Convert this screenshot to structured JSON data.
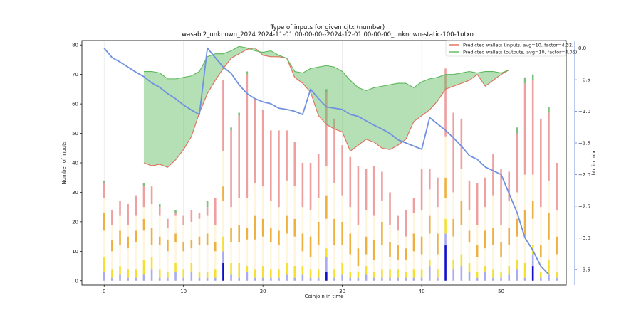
{
  "chart_data": {
    "type": "bar",
    "title": "Type of inputs for given cjtx (number)",
    "subtitle": "wasabi2_unknown_2024 2024-11-01 00-00-00--2024-12-01 00-00-00_unknown-static-100-1utxo",
    "xlabel": "Coinjoin in time",
    "ylabel": "Number of inputs",
    "y2label": "btc in mix",
    "xlim": [
      -2.8,
      58.2
    ],
    "ylim": [
      -1.5,
      81.5
    ],
    "y2lim": [
      -3.75,
      0.12
    ],
    "x_ticks": [
      0,
      10,
      20,
      30,
      40,
      50
    ],
    "y_ticks": [
      0,
      10,
      20,
      30,
      40,
      50,
      60,
      70,
      80
    ],
    "y2_ticks": [
      0.0,
      -0.5,
      -1.0,
      -1.5,
      -2.0,
      -2.5,
      -3.0,
      -3.5
    ],
    "x_tick_labels": [
      "0",
      "10",
      "20",
      "30",
      "40",
      "50"
    ],
    "y_tick_labels": [
      "0",
      "10",
      "20",
      "30",
      "40",
      "50",
      "60",
      "70",
      "80"
    ],
    "y2_tick_labels": [
      "0.0",
      "−0.5",
      "−1.0",
      "−1.5",
      "−2.0",
      "−2.5",
      "−3.0",
      "−3.5"
    ],
    "grid": "vertical",
    "legend_position": "top-right",
    "stack_colors": [
      "#1010cc",
      "#aaaaee",
      "#f5e030",
      "#fff5dd",
      "#f0b040",
      "#fff5dd",
      "#eea0a0",
      "#7ec07e"
    ],
    "stacks": [
      [
        0,
        3,
        5,
        9,
        6,
        5,
        5,
        1
      ],
      [
        0,
        1,
        3,
        6,
        4,
        5,
        5,
        0
      ],
      [
        0,
        2,
        3,
        7,
        5,
        5,
        5,
        0
      ],
      [
        0,
        1,
        3,
        7,
        4,
        4,
        7,
        0
      ],
      [
        0,
        1,
        3,
        9,
        4,
        5,
        7,
        0
      ],
      [
        0,
        2,
        5,
        10,
        4,
        4,
        7,
        1
      ],
      [
        0,
        4,
        4,
        4,
        6,
        8,
        6,
        0
      ],
      [
        0,
        1,
        3,
        8,
        3,
        7,
        3,
        1
      ],
      [
        0,
        1,
        2,
        7,
        4,
        4,
        3,
        0
      ],
      [
        0,
        3,
        3,
        7,
        3,
        6,
        1,
        1
      ],
      [
        0,
        1,
        3,
        6,
        3,
        6,
        3,
        0
      ],
      [
        0,
        3,
        3,
        5,
        3,
        6,
        4,
        0
      ],
      [
        0,
        1,
        2,
        9,
        3,
        6,
        2,
        0
      ],
      [
        0,
        1,
        2,
        9,
        4,
        6,
        3,
        2
      ],
      [
        0,
        1,
        3,
        6,
        3,
        6,
        9,
        0
      ],
      [
        6,
        4,
        5,
        12,
        5,
        12,
        24,
        0
      ],
      [
        0,
        2,
        4,
        7,
        5,
        7,
        26,
        1
      ],
      [
        0,
        1,
        5,
        7,
        6,
        9,
        28,
        1
      ],
      [
        0,
        3,
        2,
        9,
        4,
        10,
        42,
        1
      ],
      [
        0,
        1,
        3,
        10,
        8,
        11,
        29,
        0
      ],
      [
        0,
        1,
        4,
        10,
        6,
        11,
        26,
        0
      ],
      [
        0,
        1,
        3,
        9,
        5,
        9,
        24,
        0
      ],
      [
        0,
        1,
        3,
        8,
        5,
        8,
        26,
        0
      ],
      [
        0,
        2,
        4,
        10,
        6,
        12,
        17,
        0
      ],
      [
        0,
        1,
        4,
        10,
        6,
        11,
        15,
        0
      ],
      [
        0,
        2,
        3,
        5,
        6,
        9,
        15,
        0
      ],
      [
        0,
        1,
        3,
        4,
        7,
        9,
        16,
        0
      ],
      [
        0,
        1,
        3,
        8,
        8,
        8,
        15,
        0
      ],
      [
        3,
        5,
        3,
        10,
        8,
        10,
        25,
        1
      ],
      [
        0,
        1,
        3,
        8,
        9,
        12,
        22,
        0
      ],
      [
        0,
        2,
        4,
        6,
        8,
        9,
        17,
        0
      ],
      [
        0,
        1,
        2,
        6,
        7,
        9,
        17,
        0
      ],
      [
        0,
        1,
        2,
        2,
        6,
        8,
        20,
        0
      ],
      [
        0,
        2,
        3,
        4,
        6,
        9,
        14,
        0
      ],
      [
        0,
        1,
        2,
        4,
        7,
        8,
        17,
        0
      ],
      [
        0,
        1,
        3,
        8,
        8,
        7,
        10,
        0
      ],
      [
        0,
        1,
        3,
        4,
        5,
        6,
        11,
        0
      ],
      [
        0,
        1,
        3,
        3,
        5,
        5,
        5,
        0
      ],
      [
        0,
        1,
        2,
        4,
        4,
        4,
        9,
        0
      ],
      [
        0,
        1,
        3,
        6,
        6,
        7,
        5,
        0
      ],
      [
        0,
        1,
        3,
        5,
        6,
        9,
        14,
        0
      ],
      [
        0,
        5,
        2,
        9,
        6,
        9,
        7,
        0
      ],
      [
        0,
        1,
        3,
        5,
        7,
        9,
        10,
        0
      ],
      [
        12,
        4,
        5,
        7,
        7,
        14,
        23,
        0
      ],
      [
        0,
        4,
        3,
        8,
        6,
        9,
        27,
        0
      ],
      [
        0,
        5,
        4,
        10,
        8,
        11,
        17,
        0
      ],
      [
        0,
        3,
        3,
        7,
        4,
        7,
        10,
        0
      ],
      [
        0,
        1,
        2,
        5,
        4,
        7,
        14,
        0
      ],
      [
        0,
        3,
        2,
        6,
        6,
        8,
        10,
        0
      ],
      [
        0,
        1,
        3,
        8,
        6,
        11,
        14,
        0
      ],
      [
        0,
        1,
        2,
        5,
        5,
        6,
        19,
        0
      ],
      [
        0,
        2,
        3,
        7,
        6,
        9,
        10,
        0
      ],
      [
        0,
        4,
        3,
        8,
        6,
        9,
        20,
        2
      ],
      [
        0,
        1,
        5,
        9,
        9,
        12,
        31,
        2
      ],
      [
        5,
        4,
        3,
        9,
        6,
        9,
        32,
        2
      ],
      [
        0,
        1,
        2,
        5,
        4,
        13,
        30,
        0
      ],
      [
        0,
        2,
        5,
        7,
        9,
        11,
        23,
        2
      ],
      [
        0,
        1,
        2,
        6,
        6,
        9,
        16,
        0
      ]
    ],
    "series": [
      {
        "name": "Predicted wallets (inputs, avg=10, factor=4.32)",
        "color": "#e06d5a",
        "x": [
          5,
          6,
          7,
          8,
          9,
          10,
          11,
          12,
          13,
          14,
          15,
          16,
          17,
          18,
          19,
          20,
          21,
          22,
          23,
          24,
          25,
          26,
          27,
          28,
          29,
          30,
          31,
          32,
          33,
          34,
          35,
          36,
          37,
          38,
          39,
          40,
          41,
          42,
          43,
          44,
          45,
          46,
          47,
          48,
          49,
          50,
          51
        ],
        "values": [
          40,
          39,
          39.5,
          38.5,
          41,
          44.5,
          49,
          57,
          63.5,
          68,
          72,
          75.5,
          77,
          78.5,
          79,
          76.5,
          76,
          76,
          75.5,
          69,
          67,
          64,
          56,
          53,
          51.5,
          50.5,
          44,
          46,
          48,
          47,
          45,
          44.5,
          46,
          48,
          54,
          56,
          58,
          61,
          65,
          66,
          67,
          68,
          70,
          66,
          68,
          70,
          71.5
        ]
      },
      {
        "name": "Predicted wallets (outputs, avg=10, factor=4.05)",
        "color": "#5cb85c",
        "x": [
          5,
          6,
          7,
          8,
          9,
          10,
          11,
          12,
          13,
          14,
          15,
          16,
          17,
          18,
          19,
          20,
          21,
          22,
          23,
          24,
          25,
          26,
          27,
          28,
          29,
          30,
          31,
          32,
          33,
          34,
          35,
          36,
          37,
          38,
          39,
          40,
          41,
          42,
          43,
          44,
          45,
          46,
          47,
          48,
          49,
          50,
          51
        ],
        "values": [
          71,
          71,
          70.5,
          68.5,
          68.5,
          69,
          69.5,
          71,
          76,
          77,
          77,
          78,
          79.5,
          79,
          78,
          77.5,
          78,
          76.5,
          75.5,
          71,
          70.5,
          72,
          72.5,
          73,
          72.5,
          71,
          68,
          65.5,
          64.5,
          65.5,
          66,
          66.5,
          67,
          67,
          65.5,
          67.5,
          68.5,
          69,
          70,
          70,
          70.5,
          71,
          70.5,
          71,
          71,
          70.5,
          71.5
        ]
      },
      {
        "name": "btc in mix",
        "color": "#7090e0",
        "axis": "right",
        "x": [
          0,
          1,
          2,
          3,
          4,
          5,
          6,
          7,
          8,
          9,
          10,
          11,
          12,
          13,
          14,
          15,
          16,
          17,
          18,
          19,
          20,
          21,
          22,
          23,
          24,
          25,
          26,
          27,
          28,
          29,
          30,
          31,
          32,
          33,
          34,
          35,
          36,
          37,
          38,
          39,
          40,
          41,
          42,
          43,
          44,
          45,
          46,
          47,
          48,
          49,
          50,
          51,
          52,
          53,
          54,
          55,
          56
        ],
        "values": [
          0.0,
          -0.15,
          -0.22,
          -0.3,
          -0.38,
          -0.45,
          -0.55,
          -0.62,
          -0.72,
          -0.8,
          -0.9,
          -0.98,
          -1.05,
          0.0,
          -0.15,
          -0.3,
          -0.4,
          -0.58,
          -0.72,
          -0.8,
          -0.85,
          -0.88,
          -0.95,
          -0.97,
          -1.0,
          -1.05,
          -0.65,
          -0.8,
          -0.93,
          -0.95,
          -0.97,
          -1.05,
          -1.08,
          -1.15,
          -1.22,
          -1.28,
          -1.35,
          -1.45,
          -1.5,
          -1.55,
          -1.6,
          -1.1,
          -1.2,
          -1.3,
          -1.42,
          -1.55,
          -1.7,
          -1.76,
          -1.88,
          -1.94,
          -2.0,
          -2.3,
          -2.6,
          -3.0,
          -3.2,
          -3.45,
          -3.58
        ]
      }
    ]
  }
}
